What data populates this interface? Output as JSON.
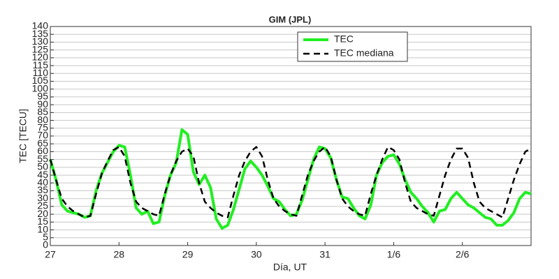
{
  "chart_data": {
    "type": "line",
    "title": "GIM (JPL)",
    "xlabel": "Día, UT",
    "ylabel": "TEC [TECU]",
    "x": [
      0,
      2,
      4,
      6,
      8,
      10,
      12,
      14,
      16,
      18,
      20,
      22,
      24,
      26,
      28,
      30,
      32,
      34,
      36,
      38,
      40,
      42,
      44,
      46,
      48,
      50,
      52,
      54,
      56,
      58,
      60,
      62,
      64,
      66,
      68,
      70,
      72,
      74,
      76,
      78,
      80,
      82,
      84,
      86,
      88,
      90,
      92,
      94,
      96,
      98,
      100,
      102,
      104,
      106,
      108,
      110,
      112,
      114,
      116,
      118,
      120,
      122,
      124,
      126,
      128,
      130,
      132,
      134,
      136,
      138,
      140,
      142,
      144,
      146,
      148,
      150,
      152,
      154,
      156,
      158,
      160,
      162,
      164,
      166,
      168
    ],
    "series": [
      {
        "name": "TEC",
        "color": "#22ee22",
        "dash": false,
        "values": [
          55,
          42,
          26,
          22,
          21,
          20,
          18,
          19,
          35,
          46,
          53,
          60,
          64,
          63,
          45,
          24,
          20,
          22,
          14,
          15,
          32,
          45,
          53,
          74,
          71,
          47,
          39,
          45,
          37,
          17,
          11,
          13,
          23,
          36,
          49,
          54,
          50,
          45,
          38,
          30,
          28,
          23,
          19,
          20,
          29,
          42,
          55,
          63,
          62,
          56,
          42,
          31,
          30,
          24,
          19,
          17,
          26,
          45,
          53,
          57,
          58,
          52,
          42,
          34,
          30,
          25,
          21,
          15,
          22,
          23,
          30,
          34,
          30,
          26,
          24,
          21,
          18,
          17,
          13,
          13,
          16,
          21,
          30,
          34,
          33
        ]
      },
      {
        "name": "TEC mediana",
        "color": "#000000",
        "dash": true,
        "values": [
          55,
          42,
          30,
          25,
          22,
          20,
          18,
          19,
          33,
          46,
          54,
          61,
          63,
          57,
          40,
          28,
          24,
          22,
          20,
          19,
          33,
          45,
          54,
          60,
          62,
          57,
          40,
          28,
          24,
          21,
          19,
          18,
          32,
          45,
          54,
          60,
          63,
          57,
          42,
          30,
          25,
          22,
          20,
          19,
          32,
          45,
          54,
          60,
          63,
          57,
          42,
          30,
          25,
          22,
          20,
          19,
          33,
          45,
          55,
          63,
          61,
          55,
          40,
          28,
          24,
          22,
          20,
          19,
          32,
          45,
          55,
          62,
          62,
          56,
          40,
          28,
          24,
          22,
          20,
          18,
          30,
          42,
          52,
          60,
          62
        ]
      }
    ],
    "xlim": [
      0,
      168
    ],
    "xticks": [
      {
        "value": 0,
        "label": "27"
      },
      {
        "value": 24,
        "label": "28"
      },
      {
        "value": 48,
        "label": "29"
      },
      {
        "value": 72,
        "label": "30"
      },
      {
        "value": 96,
        "label": "31"
      },
      {
        "value": 120,
        "label": "1/6"
      },
      {
        "value": 144,
        "label": "2/6"
      }
    ],
    "ylim": [
      0,
      140
    ],
    "yticks": [
      0,
      5,
      10,
      15,
      20,
      25,
      30,
      35,
      40,
      45,
      50,
      55,
      60,
      65,
      70,
      75,
      80,
      85,
      90,
      95,
      100,
      105,
      110,
      115,
      120,
      125,
      130,
      135,
      140
    ],
    "grid": true,
    "legend": "upper center"
  }
}
